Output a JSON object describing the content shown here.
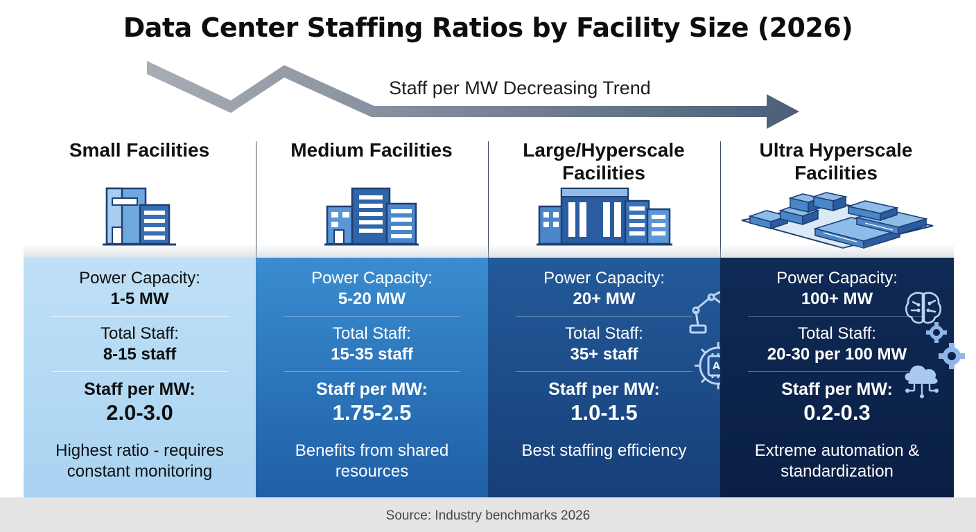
{
  "title": "Data Center Staffing Ratios by Facility Size (2026)",
  "trend": {
    "label": "Staff per MW Decreasing Trend",
    "icon": "trend-arrow-icon"
  },
  "colors": {
    "small": "#aed6f1",
    "medium": "#2d74bb",
    "large": "#1d4a86",
    "ultra": "#0c244c"
  },
  "columns": [
    {
      "title": "Small Facilities",
      "icon": "small-building-icon",
      "power_label": "Power Capacity:",
      "power_value": "1-5 MW",
      "staff_label": "Total Staff:",
      "staff_value": "8-15 staff",
      "spm_label": "Staff per MW:",
      "spm_value": "2.0-3.0",
      "desc_line1": "Highest ratio - requires",
      "desc_line2": "constant monitoring"
    },
    {
      "title": "Medium Facilities",
      "icon": "medium-building-icon",
      "power_label": "Power Capacity:",
      "power_value": "5-20 MW",
      "staff_label": "Total Staff:",
      "staff_value": "15-35 staff",
      "spm_label": "Staff per MW:",
      "spm_value": "1.75-2.5",
      "desc_line1": "Benefits from shared",
      "desc_line2": "resources"
    },
    {
      "title_line1": "Large/Hyperscale",
      "title_line2": "Facilities",
      "icon": "large-campus-icon",
      "deco_icons": [
        "robot-arm-icon",
        "ai-gear-icon",
        "ai-chip-gear-icon"
      ],
      "deco_ai_text": "AI",
      "power_label": "Power Capacity:",
      "power_value": "20+ MW",
      "staff_label": "Total Staff:",
      "staff_value": "35+ staff",
      "spm_label": "Staff per MW:",
      "spm_value": "1.0-1.5",
      "desc_line1": "Best staffing efficiency"
    },
    {
      "title_line1": "Ultra Hyperscale",
      "title_line2": "Facilities",
      "icon": "ultra-campus-icon",
      "deco_icons": [
        "brain-circuit-icon",
        "gear-icon",
        "gear-icon",
        "cloud-network-icon"
      ],
      "power_label": "Power Capacity:",
      "power_value": "100+ MW",
      "staff_label": "Total Staff:",
      "staff_value": "20-30 per 100 MW",
      "spm_label": "Staff per MW:",
      "spm_value": "0.2-0.3",
      "desc_line1": "Extreme automation &",
      "desc_line2": "standardization"
    }
  ],
  "footer": "Source: Industry benchmarks 2026"
}
